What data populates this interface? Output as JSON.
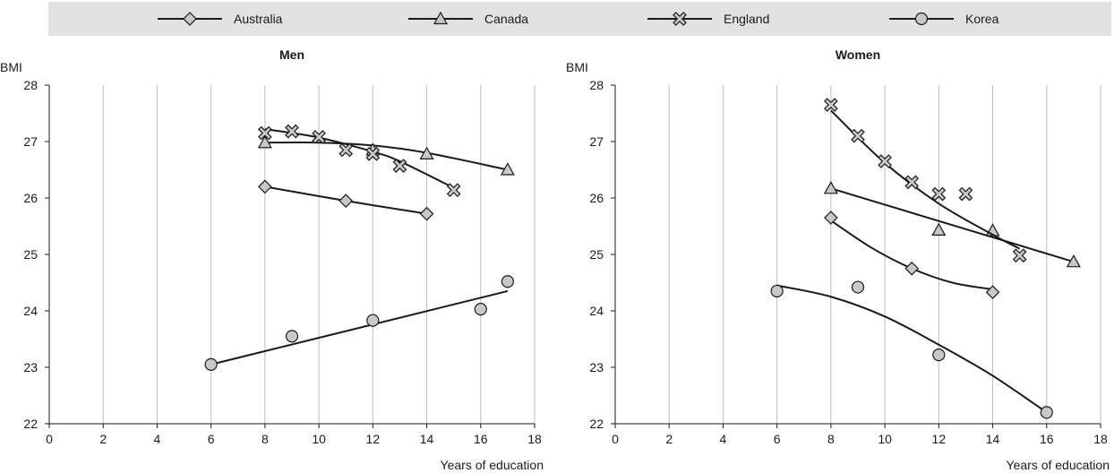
{
  "chart_data": {
    "type": "scatter",
    "legend": {
      "placement": "top",
      "entries": [
        {
          "name": "Australia",
          "marker": "diamond-icon"
        },
        {
          "name": "Canada",
          "marker": "triangle-icon"
        },
        {
          "name": "England",
          "marker": "cross-icon"
        },
        {
          "name": "Korea",
          "marker": "circle-icon"
        }
      ]
    },
    "y_unit": "BMI",
    "xlabel": "Years of education",
    "xlim": [
      0,
      18
    ],
    "ylim": [
      22,
      28
    ],
    "xticks": [
      0,
      2,
      4,
      6,
      8,
      10,
      12,
      14,
      16,
      18
    ],
    "yticks": [
      22,
      23,
      24,
      25,
      26,
      27,
      28
    ],
    "grid": "vertical",
    "colors": {
      "line": "#1a1a1a",
      "marker_fill": "#c8c8c8",
      "grid": "#bdbdbd",
      "legend_bg": "#e2e2e2"
    },
    "panels": [
      {
        "title": "Men",
        "series": [
          {
            "name": "Australia",
            "points": [
              [
                8,
                26.2
              ],
              [
                11,
                25.95
              ],
              [
                14,
                25.72
              ]
            ],
            "fit": [
              [
                8,
                26.2
              ],
              [
                11,
                25.95
              ],
              [
                14,
                25.72
              ]
            ]
          },
          {
            "name": "Canada",
            "points": [
              [
                8,
                26.98
              ],
              [
                12,
                26.85
              ],
              [
                14,
                26.78
              ],
              [
                17,
                26.5
              ]
            ],
            "fit": [
              [
                8,
                26.98
              ],
              [
                10,
                26.98
              ],
              [
                12,
                26.93
              ],
              [
                14,
                26.8
              ],
              [
                17,
                26.5
              ]
            ]
          },
          {
            "name": "England",
            "points": [
              [
                8,
                27.15
              ],
              [
                9,
                27.18
              ],
              [
                10,
                27.08
              ],
              [
                11,
                26.85
              ],
              [
                12,
                26.78
              ],
              [
                13,
                26.57
              ],
              [
                15,
                26.14
              ]
            ],
            "fit": [
              [
                8,
                27.22
              ],
              [
                10,
                27.07
              ],
              [
                12,
                26.82
              ],
              [
                13,
                26.65
              ],
              [
                15,
                26.18
              ]
            ]
          },
          {
            "name": "Korea",
            "points": [
              [
                6,
                23.05
              ],
              [
                9,
                23.55
              ],
              [
                12,
                23.83
              ],
              [
                16,
                24.03
              ],
              [
                17,
                24.52
              ]
            ],
            "fit": [
              [
                6,
                23.05
              ],
              [
                17,
                24.35
              ]
            ]
          }
        ]
      },
      {
        "title": "Women",
        "series": [
          {
            "name": "Australia",
            "points": [
              [
                8,
                25.65
              ],
              [
                11,
                24.75
              ],
              [
                14,
                24.33
              ]
            ],
            "fit": [
              [
                8,
                25.6
              ],
              [
                9.5,
                25.12
              ],
              [
                11,
                24.75
              ],
              [
                12.5,
                24.5
              ],
              [
                14,
                24.38
              ]
            ]
          },
          {
            "name": "Canada",
            "points": [
              [
                8,
                26.17
              ],
              [
                12,
                25.43
              ],
              [
                14,
                25.42
              ],
              [
                17,
                24.87
              ]
            ],
            "fit": [
              [
                8,
                26.17
              ],
              [
                17,
                24.87
              ]
            ]
          },
          {
            "name": "England",
            "points": [
              [
                8,
                27.65
              ],
              [
                9,
                27.1
              ],
              [
                10,
                26.65
              ],
              [
                11,
                26.28
              ],
              [
                12,
                26.07
              ],
              [
                13,
                26.07
              ],
              [
                15,
                24.98
              ]
            ],
            "fit": [
              [
                8,
                27.55
              ],
              [
                10,
                26.62
              ],
              [
                12,
                25.9
              ],
              [
                14,
                25.35
              ],
              [
                15,
                25.1
              ]
            ]
          },
          {
            "name": "Korea",
            "points": [
              [
                6,
                24.35
              ],
              [
                9,
                24.42
              ],
              [
                12,
                23.22
              ],
              [
                16,
                22.2
              ]
            ],
            "fit": [
              [
                6,
                24.45
              ],
              [
                8,
                24.25
              ],
              [
                10,
                23.9
              ],
              [
                12,
                23.4
              ],
              [
                14,
                22.85
              ],
              [
                16,
                22.2
              ]
            ]
          }
        ]
      }
    ]
  }
}
